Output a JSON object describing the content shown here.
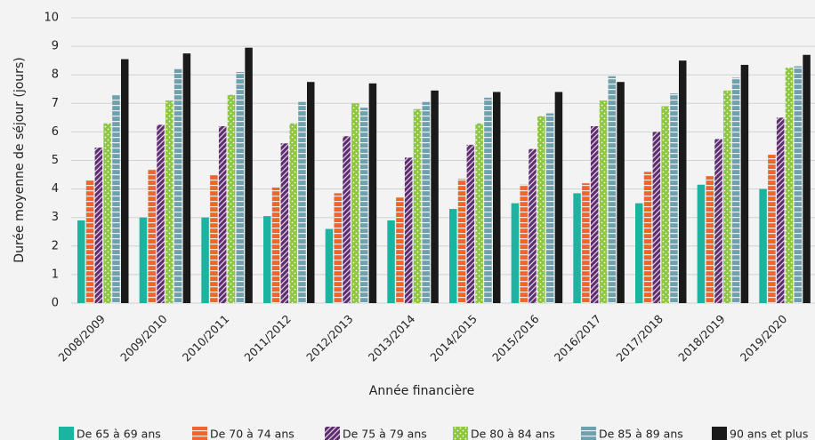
{
  "chart_data": {
    "type": "bar",
    "y_label": "Durée moyenne de séjour (jours)",
    "x_label": "Année financière",
    "categories": [
      "2008/2009",
      "2009/2010",
      "2010/2011",
      "2011/2012",
      "2012/2013",
      "2013/2014",
      "2014/2015",
      "2015/2016",
      "2016/2017",
      "2017/2018",
      "2018/2019",
      "2019/2020"
    ],
    "series": [
      {
        "name": "De 65 à 69 ans",
        "color": "#1db3a1",
        "pattern": "solid",
        "values": [
          2.9,
          3.0,
          3.0,
          3.05,
          2.6,
          2.9,
          3.3,
          3.5,
          3.85,
          3.5,
          4.15,
          4.0
        ]
      },
      {
        "name": "De 70 à 74 ans",
        "color": "#f0652b",
        "pattern": "hstripe",
        "values": [
          4.3,
          4.7,
          4.5,
          4.05,
          3.85,
          3.7,
          4.35,
          4.15,
          4.2,
          4.6,
          4.45,
          5.2
        ]
      },
      {
        "name": "De 75 à 79 ans",
        "color": "#5e2c6f",
        "pattern": "diag",
        "values": [
          5.45,
          6.25,
          6.2,
          5.6,
          5.85,
          5.1,
          5.55,
          5.4,
          6.2,
          6.0,
          5.75,
          6.5
        ]
      },
      {
        "name": "De 80 à 84 ans",
        "color": "#8dc63f",
        "pattern": "dots",
        "values": [
          6.3,
          7.1,
          7.3,
          6.3,
          7.0,
          6.8,
          6.3,
          6.55,
          7.1,
          6.9,
          7.45,
          8.25
        ]
      },
      {
        "name": "De 85 à 89 ans",
        "color": "#6fa0ad",
        "pattern": "hstripe",
        "values": [
          7.3,
          8.2,
          8.1,
          7.05,
          6.85,
          7.05,
          7.2,
          6.65,
          7.95,
          7.35,
          7.9,
          8.3
        ]
      },
      {
        "name": "90 ans et plus",
        "color": "#1a1a1a",
        "pattern": "solid",
        "values": [
          8.55,
          8.75,
          8.95,
          7.75,
          7.7,
          7.45,
          7.4,
          7.4,
          7.75,
          8.5,
          8.35,
          8.7
        ]
      }
    ],
    "ylim": [
      0,
      10
    ],
    "yticks": [
      0,
      1,
      2,
      3,
      4,
      5,
      6,
      7,
      8,
      9,
      10
    ],
    "grid": true
  }
}
